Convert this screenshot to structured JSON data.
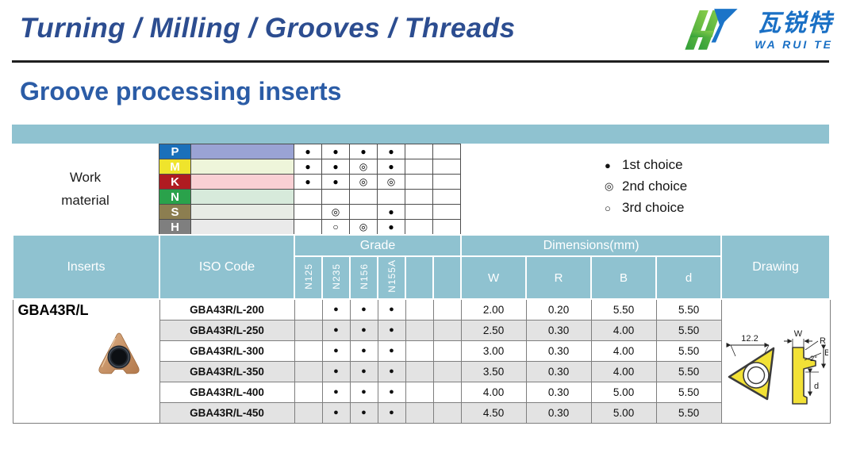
{
  "header": {
    "title": "Turning / Milling / Grooves / Threads",
    "logo": {
      "cn": "瓦锐特",
      "en": "WA RUI TE"
    }
  },
  "page_title": "Groove processing inserts",
  "work_material": {
    "label_line1": "Work",
    "label_line2": "material",
    "rows": [
      {
        "letter": "P",
        "letter_bg": "#1a70ba",
        "bar_bg": "#9aa3d4",
        "dots": [
          "●",
          "●",
          "●",
          "●",
          "",
          ""
        ]
      },
      {
        "letter": "M",
        "letter_bg": "#efe42c",
        "bar_bg": "#eef5da",
        "dots": [
          "●",
          "●",
          "◎",
          "●",
          "",
          ""
        ]
      },
      {
        "letter": "K",
        "letter_bg": "#b01b21",
        "bar_bg": "#f9d0d4",
        "dots": [
          "●",
          "●",
          "◎",
          "◎",
          "",
          ""
        ]
      },
      {
        "letter": "N",
        "letter_bg": "#2aa24b",
        "bar_bg": "#d7eadb",
        "dots": [
          "",
          "",
          "",
          "",
          "",
          ""
        ]
      },
      {
        "letter": "S",
        "letter_bg": "#8c7e50",
        "bar_bg": "#e8ece5",
        "dots": [
          "",
          "◎",
          "",
          "●",
          "",
          ""
        ]
      },
      {
        "letter": "H",
        "letter_bg": "#7f7f7f",
        "bar_bg": "#eaeaea",
        "dots": [
          "",
          "○",
          "◎",
          "●",
          "",
          ""
        ]
      }
    ]
  },
  "legend": [
    {
      "symbol": "●",
      "label": "1st choice"
    },
    {
      "symbol": "◎",
      "label": "2nd choice"
    },
    {
      "symbol": "○",
      "label": "3rd choice"
    }
  ],
  "table": {
    "headers": {
      "inserts": "Inserts",
      "iso_code": "ISO Code",
      "grade": "Grade",
      "grade_cols": [
        "N125",
        "N235",
        "N156",
        "N155A",
        "",
        ""
      ],
      "dimensions": "Dimensions(mm)",
      "dim_cols": [
        "W",
        "R",
        "B",
        "d"
      ],
      "drawing": "Drawing"
    },
    "insert_name": "GBA43R/L",
    "rows": [
      {
        "iso": "GBA43R/L-200",
        "dots": [
          "",
          "●",
          "●",
          "●",
          "",
          ""
        ],
        "w": "2.00",
        "r": "0.20",
        "b": "5.50",
        "d": "5.50"
      },
      {
        "iso": "GBA43R/L-250",
        "dots": [
          "",
          "●",
          "●",
          "●",
          "",
          ""
        ],
        "w": "2.50",
        "r": "0.30",
        "b": "4.00",
        "d": "5.50"
      },
      {
        "iso": "GBA43R/L-300",
        "dots": [
          "",
          "●",
          "●",
          "●",
          "",
          ""
        ],
        "w": "3.00",
        "r": "0.30",
        "b": "4.00",
        "d": "5.50"
      },
      {
        "iso": "GBA43R/L-350",
        "dots": [
          "",
          "●",
          "●",
          "●",
          "",
          ""
        ],
        "w": "3.50",
        "r": "0.30",
        "b": "4.00",
        "d": "5.50"
      },
      {
        "iso": "GBA43R/L-400",
        "dots": [
          "",
          "●",
          "●",
          "●",
          "",
          ""
        ],
        "w": "4.00",
        "r": "0.30",
        "b": "5.00",
        "d": "5.50"
      },
      {
        "iso": "GBA43R/L-450",
        "dots": [
          "",
          "●",
          "●",
          "●",
          "",
          ""
        ],
        "w": "4.50",
        "r": "0.30",
        "b": "5.00",
        "d": "5.50"
      }
    ],
    "drawing_labels": {
      "dim": "12.2",
      "w": "W",
      "r": "R",
      "angle": "2°",
      "b": "B",
      "d": "d"
    }
  },
  "colors": {
    "teal": "#8fc2d0",
    "title_blue": "#2c4d90",
    "subtitle_blue": "#2b5ca6",
    "logo_blue": "#1a70c5",
    "row_alt": "#e3e3e3"
  }
}
